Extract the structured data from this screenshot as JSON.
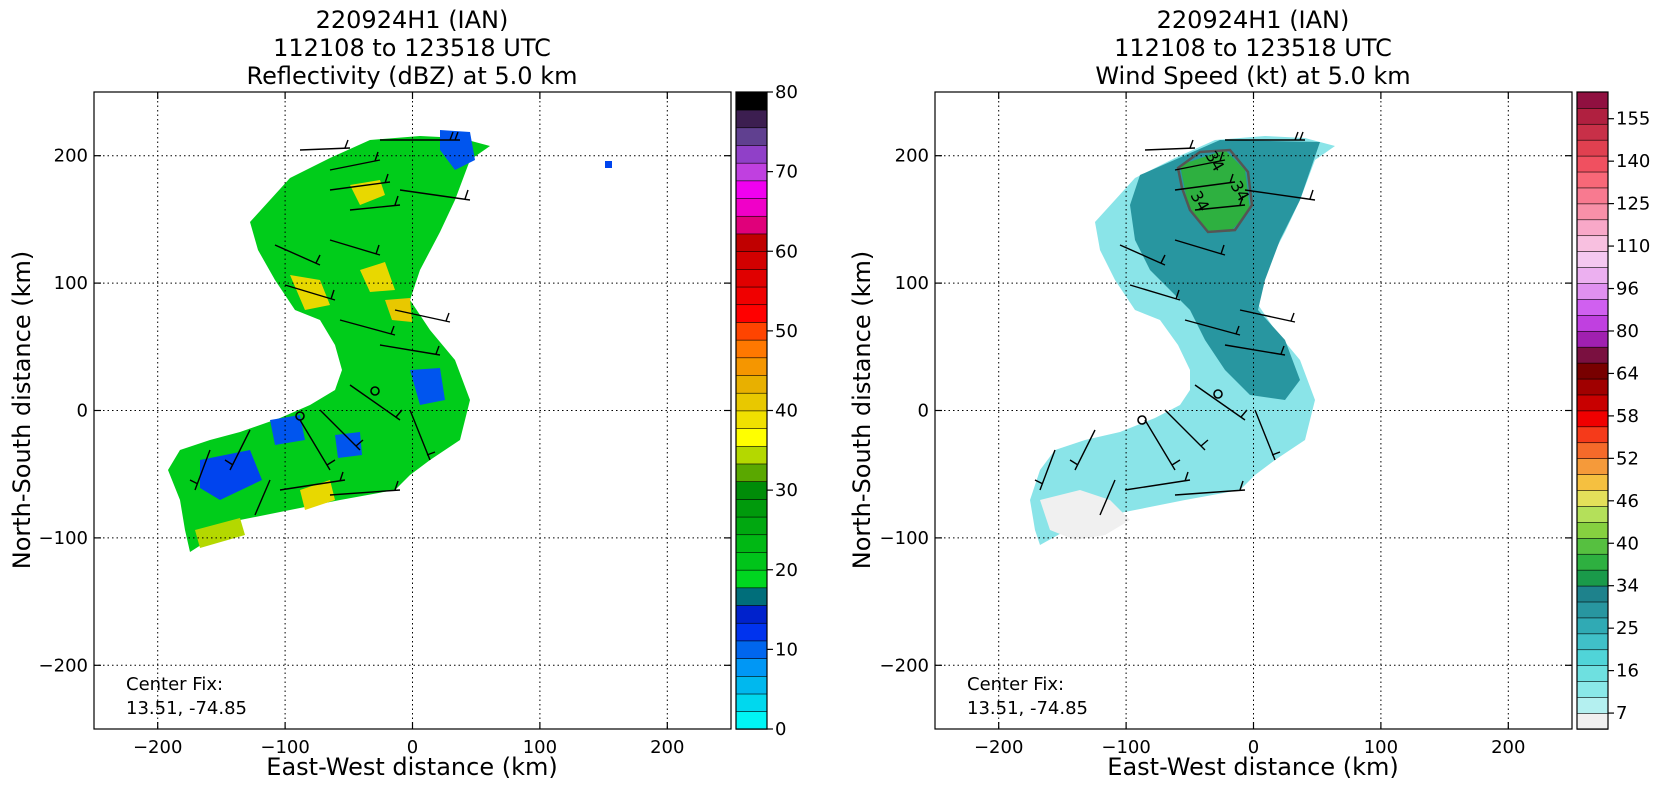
{
  "chart_data": [
    {
      "type": "heatmap",
      "title_lines": [
        "220924H1 (IAN)",
        "112108 to 123518 UTC",
        "Reflectivity (dBZ) at 5.0 km"
      ],
      "xlabel": "East-West distance (km)",
      "ylabel": "North-South distance (km)",
      "xlim": [
        -250,
        250
      ],
      "ylim": [
        -250,
        250
      ],
      "xticks": [
        -200,
        -100,
        0,
        100,
        200
      ],
      "yticks": [
        -200,
        -100,
        0,
        100,
        200
      ],
      "xtick_labels": [
        "−200",
        "−100",
        "0",
        "100",
        "200"
      ],
      "ytick_labels": [
        "−200",
        "−100",
        "0",
        "100",
        "200"
      ],
      "grid": true,
      "annotation": [
        "Center Fix:",
        "13.51, -74.85"
      ],
      "colorbar": {
        "min": 0,
        "max": 80,
        "tick_labels": [
          "0",
          "10",
          "20",
          "30",
          "40",
          "50",
          "60",
          "70",
          "80"
        ],
        "colors": [
          "#00f5f5",
          "#00d8ee",
          "#00b8ee",
          "#0097f5",
          "#0066ee",
          "#0033ee",
          "#0022cc",
          "#006e7a",
          "#00d620",
          "#00c41a",
          "#00b814",
          "#00a810",
          "#009a0c",
          "#008c08",
          "#5aa800",
          "#b4d800",
          "#ffff00",
          "#f0e000",
          "#e8c800",
          "#e8b000",
          "#f59600",
          "#ff7800",
          "#ff4400",
          "#ff0000",
          "#f00000",
          "#e00000",
          "#d20000",
          "#c00000",
          "#e0007a",
          "#f000c8",
          "#f000f0",
          "#c040e0",
          "#9040c8",
          "#604090",
          "#3c1e50",
          "#000000"
        ]
      }
    },
    {
      "type": "heatmap",
      "title_lines": [
        "220924H1 (IAN)",
        "112108 to 123518 UTC",
        "Wind Speed (kt) at 5.0 km"
      ],
      "xlabel": "East-West distance (km)",
      "ylabel": "North-South distance (km)",
      "xlim": [
        -250,
        250
      ],
      "ylim": [
        -250,
        250
      ],
      "xticks": [
        -200,
        -100,
        0,
        100,
        200
      ],
      "yticks": [
        -200,
        -100,
        0,
        100,
        200
      ],
      "xtick_labels": [
        "−200",
        "−100",
        "0",
        "100",
        "200"
      ],
      "ytick_labels": [
        "−200",
        "−100",
        "0",
        "100",
        "200"
      ],
      "grid": true,
      "annotation": [
        "Center Fix:",
        "13.51, -74.85"
      ],
      "contour_labels": [
        "34",
        "34",
        "34"
      ],
      "colorbar": {
        "tick_labels": [
          "7",
          "16",
          "25",
          "34",
          "40",
          "46",
          "52",
          "58",
          "64",
          "80",
          "96",
          "110",
          "125",
          "140",
          "155"
        ],
        "colors": [
          "#f0f0f0",
          "#b4f0f0",
          "#8ae8e8",
          "#6ee0e0",
          "#50d4d8",
          "#40c0c8",
          "#30aab4",
          "#2896a0",
          "#1e828c",
          "#1a9a4a",
          "#2eb040",
          "#56c040",
          "#86d040",
          "#b4e05a",
          "#e4e05a",
          "#f5c040",
          "#f59a3a",
          "#f56a2a",
          "#f53a1a",
          "#f00000",
          "#c80000",
          "#a00000",
          "#780000",
          "#7a1040",
          "#a020b0",
          "#c040e0",
          "#d060f0",
          "#e090f0",
          "#ecb0f0",
          "#f4c8f0",
          "#f8c0e0",
          "#f8a8c8",
          "#f890a8",
          "#f87a90",
          "#f86878",
          "#f05060",
          "#e04050",
          "#c83048",
          "#b02040",
          "#901040"
        ]
      }
    }
  ]
}
